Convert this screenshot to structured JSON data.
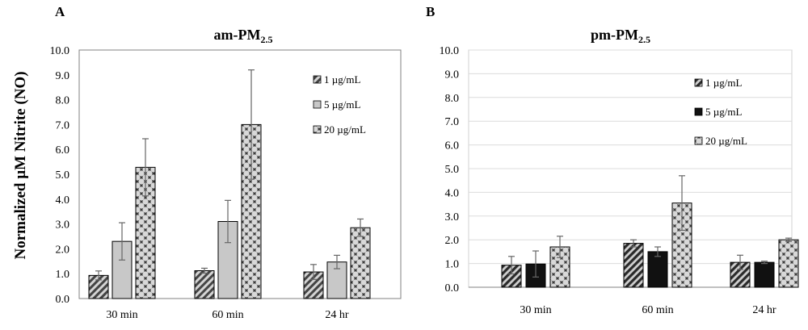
{
  "y_axis_label": "Normalized µM Nitrite (NO)",
  "colors": {
    "light_gray": "#c8c8c8",
    "dark_gray": "#2a2a2a",
    "axis": "#808080",
    "grid": "#dcdcdc"
  },
  "chart_data": [
    {
      "panel": "A",
      "type": "bar",
      "title_main": "am-PM",
      "title_sub": "2.5",
      "categories": [
        "30 min",
        "60 min",
        "24 hr"
      ],
      "ylim": [
        0,
        10
      ],
      "yticks": [
        "0.0",
        "1.0",
        "2.0",
        "3.0",
        "4.0",
        "5.0",
        "6.0",
        "7.0",
        "8.0",
        "9.0",
        "10.0"
      ],
      "grid": false,
      "legend_position": "top-right",
      "series": [
        {
          "name": "1 µg/mL",
          "pattern": "stripe-light",
          "values": [
            0.93,
            1.12,
            1.07
          ],
          "errors": [
            0.18,
            0.1,
            0.3
          ]
        },
        {
          "name": "5 µg/mL",
          "pattern": "solid-light",
          "values": [
            2.3,
            3.1,
            1.47
          ],
          "errors": [
            0.75,
            0.85,
            0.27
          ]
        },
        {
          "name": "20 µg/mL",
          "pattern": "checker-light",
          "values": [
            5.28,
            7.0,
            2.85
          ],
          "errors": [
            1.15,
            2.2,
            0.35
          ]
        }
      ]
    },
    {
      "panel": "B",
      "type": "bar",
      "title_main": "pm-PM",
      "title_sub": "2.5",
      "categories": [
        "30 min",
        "60 min",
        "24 hr"
      ],
      "ylim": [
        0,
        10
      ],
      "yticks": [
        "0.0",
        "1.0",
        "2.0",
        "3.0",
        "4.0",
        "5.0",
        "6.0",
        "7.0",
        "8.0",
        "9.0",
        "10.0"
      ],
      "grid": true,
      "legend_position": "top-right",
      "series": [
        {
          "name": "1 µg/mL",
          "pattern": "stripe-dark",
          "values": [
            0.93,
            1.85,
            1.05
          ],
          "errors": [
            0.37,
            0.15,
            0.3
          ]
        },
        {
          "name": "5 µg/mL",
          "pattern": "solid-dark",
          "values": [
            0.98,
            1.5,
            1.05
          ],
          "errors": [
            0.55,
            0.2,
            0.05
          ]
        },
        {
          "name": "20 µg/mL",
          "pattern": "checker-dark",
          "values": [
            1.7,
            3.55,
            2.0
          ],
          "errors": [
            0.45,
            1.15,
            0.07
          ]
        }
      ]
    }
  ]
}
